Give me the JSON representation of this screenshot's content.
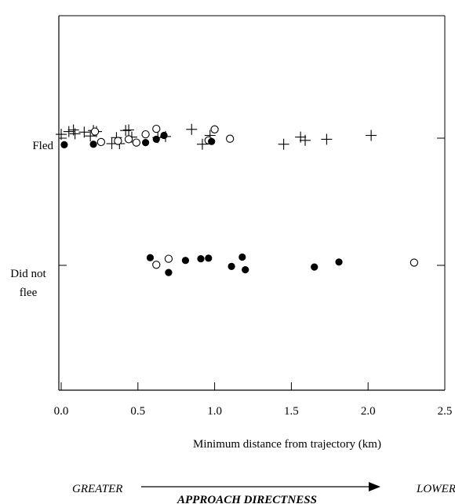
{
  "chart_data": {
    "type": "scatter",
    "xlabel": "Minimum distance from trajectory (km)",
    "xlim": [
      0,
      2.5
    ],
    "x_ticks": [
      "0.0",
      "0.5",
      "1.0",
      "1.5",
      "2.0",
      "2.5"
    ],
    "x_tick_values": [
      0,
      0.5,
      1.0,
      1.5,
      2.0,
      2.5
    ],
    "categories": [
      "Fled",
      "Did not\nflee"
    ],
    "category_labels": [
      "Fled",
      "Did not",
      "flee"
    ],
    "grid": false,
    "series": [
      {
        "marker": "plus",
        "points": [
          {
            "x": 0.0,
            "cat": 0,
            "jitter": 0.35
          },
          {
            "x": 0.05,
            "cat": 0,
            "jitter": 0.6
          },
          {
            "x": 0.08,
            "cat": 0,
            "jitter": 0.75
          },
          {
            "x": 0.09,
            "cat": 0,
            "jitter": 0.4
          },
          {
            "x": 0.15,
            "cat": 0,
            "jitter": 0.55
          },
          {
            "x": 0.19,
            "cat": 0,
            "jitter": 0.2
          },
          {
            "x": 0.21,
            "cat": 0,
            "jitter": 0.7
          },
          {
            "x": 0.23,
            "cat": 0,
            "jitter": 0.6
          },
          {
            "x": 0.33,
            "cat": 0,
            "jitter": -0.5
          },
          {
            "x": 0.36,
            "cat": 0,
            "jitter": 0.05
          },
          {
            "x": 0.38,
            "cat": 0,
            "jitter": -0.5
          },
          {
            "x": 0.42,
            "cat": 0,
            "jitter": 0.7
          },
          {
            "x": 0.44,
            "cat": 0,
            "jitter": 0.75
          },
          {
            "x": 0.46,
            "cat": 0,
            "jitter": 0.1
          },
          {
            "x": 0.63,
            "cat": 0,
            "jitter": 0.05
          },
          {
            "x": 0.68,
            "cat": 0,
            "jitter": 0.15
          },
          {
            "x": 0.85,
            "cat": 0,
            "jitter": 0.8
          },
          {
            "x": 0.92,
            "cat": 0,
            "jitter": -0.55
          },
          {
            "x": 0.97,
            "cat": 0,
            "jitter": 0.25
          },
          {
            "x": 1.45,
            "cat": 0,
            "jitter": -0.55
          },
          {
            "x": 1.56,
            "cat": 0,
            "jitter": 0.1
          },
          {
            "x": 1.59,
            "cat": 0,
            "jitter": -0.2
          },
          {
            "x": 1.73,
            "cat": 0,
            "jitter": -0.1
          },
          {
            "x": 2.02,
            "cat": 0,
            "jitter": 0.25
          }
        ]
      },
      {
        "marker": "open-circle",
        "points": [
          {
            "x": 0.22,
            "cat": 0,
            "jitter": 0.6
          },
          {
            "x": 0.26,
            "cat": 0,
            "jitter": -0.35
          },
          {
            "x": 0.37,
            "cat": 0,
            "jitter": -0.25
          },
          {
            "x": 0.44,
            "cat": 0,
            "jitter": -0.1
          },
          {
            "x": 0.49,
            "cat": 0,
            "jitter": -0.4
          },
          {
            "x": 0.55,
            "cat": 0,
            "jitter": 0.35
          },
          {
            "x": 0.62,
            "cat": 0,
            "jitter": 0.85
          },
          {
            "x": 0.96,
            "cat": 0,
            "jitter": -0.2
          },
          {
            "x": 1.0,
            "cat": 0,
            "jitter": 0.8
          },
          {
            "x": 1.1,
            "cat": 0,
            "jitter": -0.05
          },
          {
            "x": 0.62,
            "cat": 1,
            "jitter": 0.05
          },
          {
            "x": 0.7,
            "cat": 1,
            "jitter": 0.6
          },
          {
            "x": 2.3,
            "cat": 1,
            "jitter": 0.25
          }
        ]
      },
      {
        "marker": "filled-circle",
        "points": [
          {
            "x": 0.02,
            "cat": 0,
            "jitter": -0.6
          },
          {
            "x": 0.21,
            "cat": 0,
            "jitter": -0.55
          },
          {
            "x": 0.55,
            "cat": 0,
            "jitter": -0.4
          },
          {
            "x": 0.62,
            "cat": 0,
            "jitter": -0.1
          },
          {
            "x": 0.67,
            "cat": 0,
            "jitter": 0.25
          },
          {
            "x": 0.98,
            "cat": 0,
            "jitter": -0.3
          },
          {
            "x": 0.58,
            "cat": 1,
            "jitter": 0.7
          },
          {
            "x": 0.7,
            "cat": 1,
            "jitter": -0.65
          },
          {
            "x": 0.81,
            "cat": 1,
            "jitter": 0.45
          },
          {
            "x": 0.91,
            "cat": 1,
            "jitter": 0.6
          },
          {
            "x": 0.96,
            "cat": 1,
            "jitter": 0.65
          },
          {
            "x": 1.11,
            "cat": 1,
            "jitter": -0.1
          },
          {
            "x": 1.18,
            "cat": 1,
            "jitter": 0.75
          },
          {
            "x": 1.2,
            "cat": 1,
            "jitter": -0.4
          },
          {
            "x": 1.65,
            "cat": 1,
            "jitter": -0.15
          },
          {
            "x": 1.81,
            "cat": 1,
            "jitter": 0.3
          }
        ]
      }
    ],
    "direction": {
      "left": "GREATER",
      "right": "LOWER",
      "title": "APPROACH DIRECTNESS"
    }
  }
}
